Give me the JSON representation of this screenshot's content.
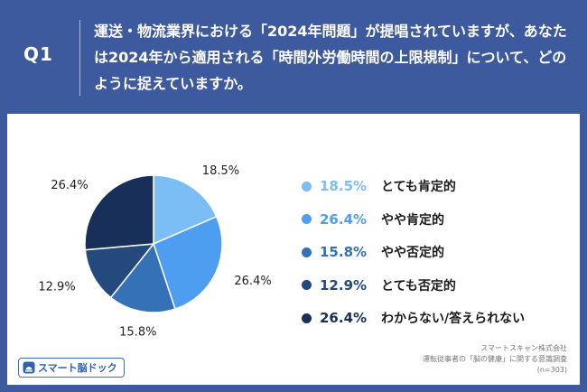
{
  "header": {
    "q_label": "Q1",
    "question": "運送・物流業界における「2024年問題」が提唱されていますが、あなたは2024年から適用される「時間外労働時間の上限規制」について、どのように捉えていますか。"
  },
  "chart_data": {
    "type": "pie",
    "categories": [
      "とても肯定的",
      "やや肯定的",
      "やや否定的",
      "とても否定的",
      "わからない/答えられない"
    ],
    "values": [
      18.5,
      26.4,
      15.8,
      12.9,
      26.4
    ],
    "value_labels": [
      "18.5%",
      "26.4%",
      "15.8%",
      "12.9%",
      "26.4%"
    ],
    "colors": [
      "#7bbdf5",
      "#4d9ef0",
      "#3471b6",
      "#23497d",
      "#172f59"
    ],
    "start": "12 o'clock, clockwise",
    "legend_placement": "right"
  },
  "legend": [
    {
      "value": "18.5%",
      "label": "とても肯定的"
    },
    {
      "value": "26.4%",
      "label": "やや肯定的"
    },
    {
      "value": "15.8%",
      "label": "やや否定的"
    },
    {
      "value": "12.9%",
      "label": "とても否定的"
    },
    {
      "value": "26.4%",
      "label": "わからない/答えられない"
    }
  ],
  "source": {
    "company": "スマートスキャン株式会社",
    "survey": "運転従事者の「脳の健康」に関する意識調査",
    "sample": "(n=303)"
  },
  "logo": {
    "text": "スマート脳ドック"
  }
}
